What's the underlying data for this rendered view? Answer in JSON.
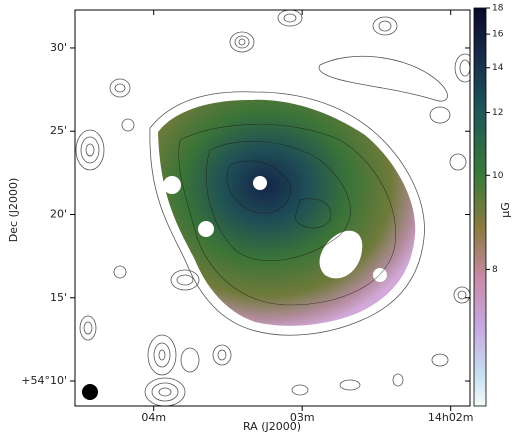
{
  "chart_data": {
    "type": "image",
    "x_label": "RA (J2000)",
    "y_label": "Dec (J2000)",
    "xlim": [
      844.53,
      841.87
    ],
    "xticks": [
      {
        "value": 844,
        "label": "04m"
      },
      {
        "value": 843,
        "label": "03m"
      },
      {
        "value": 842,
        "label": "14h02m"
      }
    ],
    "ylim": [
      8.5,
      32.28
    ],
    "yticks": [
      {
        "value": 30,
        "label": "30'"
      },
      {
        "value": 25,
        "label": "25'"
      },
      {
        "value": 20,
        "label": "20'"
      },
      {
        "value": 15,
        "label": "15'"
      },
      {
        "value": 10,
        "label": "+54°10'"
      }
    ],
    "colorbar": {
      "label": "μG",
      "clim": [
        6.2,
        18
      ],
      "scale": "reciprocal",
      "ticks": [
        8,
        10,
        12,
        14,
        16,
        18
      ]
    }
  }
}
